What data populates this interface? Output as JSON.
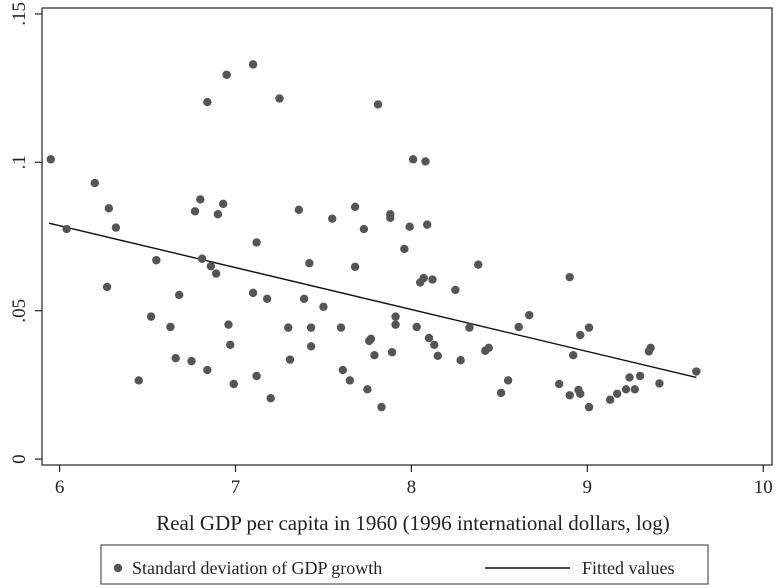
{
  "chart_data": {
    "type": "scatter",
    "xlabel": "Real GDP per capita in 1960 (1996 international dollars, log)",
    "ylabel": "",
    "xlim": [
      5.9,
      10.05
    ],
    "ylim": [
      -0.002,
      0.152
    ],
    "x_ticks": [
      6,
      7,
      8,
      9,
      10
    ],
    "x_tick_labels": [
      "6",
      "7",
      "8",
      "9",
      "10"
    ],
    "y_ticks": [
      0,
      0.05,
      0.1,
      0.15
    ],
    "y_tick_labels": [
      "0",
      ".05",
      ".1",
      ".15"
    ],
    "grid": false,
    "legend_position": "bottom",
    "colors": {
      "points": "#555555",
      "line": "#111111",
      "axes": "#222222"
    },
    "series": [
      {
        "name": "Standard deviation of GDP growth",
        "kind": "scatter",
        "points": [
          [
            5.95,
            0.101
          ],
          [
            6.04,
            0.0775
          ],
          [
            6.2,
            0.093
          ],
          [
            6.27,
            0.058
          ],
          [
            6.28,
            0.0845
          ],
          [
            6.32,
            0.078
          ],
          [
            6.45,
            0.0265
          ],
          [
            6.52,
            0.048
          ],
          [
            6.55,
            0.067
          ],
          [
            6.63,
            0.0445
          ],
          [
            6.66,
            0.034
          ],
          [
            6.68,
            0.0553
          ],
          [
            6.75,
            0.033
          ],
          [
            6.77,
            0.0835
          ],
          [
            6.8,
            0.0875
          ],
          [
            6.81,
            0.0675
          ],
          [
            6.84,
            0.03
          ],
          [
            6.84,
            0.1203
          ],
          [
            6.86,
            0.065
          ],
          [
            6.89,
            0.0625
          ],
          [
            6.9,
            0.0825
          ],
          [
            6.93,
            0.086
          ],
          [
            6.95,
            0.1295
          ],
          [
            6.96,
            0.0453
          ],
          [
            6.97,
            0.0385
          ],
          [
            6.99,
            0.0253
          ],
          [
            7.1,
            0.133
          ],
          [
            7.1,
            0.056
          ],
          [
            7.12,
            0.073
          ],
          [
            7.12,
            0.028
          ],
          [
            7.18,
            0.054
          ],
          [
            7.2,
            0.0205
          ],
          [
            7.25,
            0.1215
          ],
          [
            7.3,
            0.0443
          ],
          [
            7.31,
            0.0335
          ],
          [
            7.36,
            0.084
          ],
          [
            7.39,
            0.054
          ],
          [
            7.42,
            0.066
          ],
          [
            7.43,
            0.0443
          ],
          [
            7.43,
            0.038
          ],
          [
            7.5,
            0.0513
          ],
          [
            7.55,
            0.081
          ],
          [
            7.6,
            0.0443
          ],
          [
            7.61,
            0.03
          ],
          [
            7.65,
            0.0265
          ],
          [
            7.68,
            0.085
          ],
          [
            7.68,
            0.0648
          ],
          [
            7.73,
            0.0775
          ],
          [
            7.75,
            0.0235
          ],
          [
            7.76,
            0.0398
          ],
          [
            7.77,
            0.0405
          ],
          [
            7.79,
            0.035
          ],
          [
            7.81,
            0.1195
          ],
          [
            7.83,
            0.0175
          ],
          [
            7.88,
            0.0825
          ],
          [
            7.88,
            0.0813
          ],
          [
            7.89,
            0.036
          ],
          [
            7.91,
            0.048
          ],
          [
            7.91,
            0.0453
          ],
          [
            7.96,
            0.0708
          ],
          [
            7.99,
            0.0783
          ],
          [
            8.01,
            0.101
          ],
          [
            8.03,
            0.0445
          ],
          [
            8.05,
            0.0595
          ],
          [
            8.07,
            0.061
          ],
          [
            8.08,
            0.1003
          ],
          [
            8.09,
            0.079
          ],
          [
            8.1,
            0.0408
          ],
          [
            8.12,
            0.0605
          ],
          [
            8.13,
            0.0385
          ],
          [
            8.15,
            0.0348
          ],
          [
            8.25,
            0.057
          ],
          [
            8.28,
            0.0333
          ],
          [
            8.33,
            0.0443
          ],
          [
            8.38,
            0.0655
          ],
          [
            8.42,
            0.0365
          ],
          [
            8.44,
            0.0375
          ],
          [
            8.51,
            0.0223
          ],
          [
            8.55,
            0.0265
          ],
          [
            8.61,
            0.0445
          ],
          [
            8.67,
            0.0485
          ],
          [
            8.84,
            0.0253
          ],
          [
            8.9,
            0.0613
          ],
          [
            8.9,
            0.0215
          ],
          [
            8.92,
            0.035
          ],
          [
            8.95,
            0.0233
          ],
          [
            8.96,
            0.0418
          ],
          [
            8.96,
            0.022
          ],
          [
            9.01,
            0.0443
          ],
          [
            9.01,
            0.0175
          ],
          [
            9.13,
            0.02
          ],
          [
            9.17,
            0.022
          ],
          [
            9.22,
            0.0235
          ],
          [
            9.24,
            0.0275
          ],
          [
            9.27,
            0.0235
          ],
          [
            9.3,
            0.028
          ],
          [
            9.35,
            0.0363
          ],
          [
            9.36,
            0.0375
          ],
          [
            9.41,
            0.0255
          ],
          [
            9.62,
            0.0295
          ]
        ]
      },
      {
        "name": "Fitted values",
        "kind": "line",
        "points": [
          [
            5.94,
            0.0795
          ],
          [
            9.62,
            0.0275
          ]
        ]
      }
    ]
  }
}
